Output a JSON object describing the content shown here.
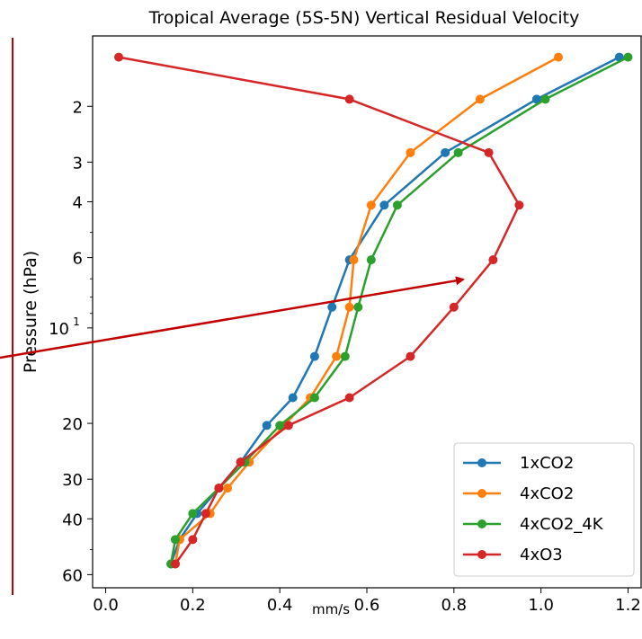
{
  "chart_data": {
    "type": "line",
    "title": "Tropical Average (5S-5N) Vertical Residual Velocity",
    "xlabel": "mm/s",
    "ylabel": "Pressure (hPa)",
    "xlim": [
      -0.03,
      1.23
    ],
    "ylim": [
      1.2,
      66
    ],
    "yscale": "log",
    "y_inverted": true,
    "grid": false,
    "legend_position": "lower-right",
    "xticks": [
      0.0,
      0.2,
      0.4,
      0.6,
      0.8,
      1.0,
      1.2
    ],
    "xtick_labels": [
      "0.0",
      "0.2",
      "0.4",
      "0.6",
      "0.8",
      "1.0",
      "1.2"
    ],
    "yticks": [
      2,
      3,
      4,
      6,
      10,
      20,
      30,
      40,
      60
    ],
    "ytick_labels": [
      "2",
      "3",
      "4",
      "6",
      "10",
      "20",
      "30",
      "40",
      "60"
    ],
    "pressure_levels": [
      1.4,
      1.9,
      2.8,
      4.1,
      6.1,
      8.6,
      12.3,
      16.6,
      20.3,
      26.5,
      32.0,
      38.5,
      46.5,
      55.5
    ],
    "series": [
      {
        "name": "1xCO2",
        "color": "#1f77b4",
        "values": [
          1.18,
          0.99,
          0.78,
          0.64,
          0.56,
          0.52,
          0.48,
          0.43,
          0.37,
          0.31,
          0.26,
          0.21,
          0.17,
          0.15
        ]
      },
      {
        "name": "4xCO2",
        "color": "#ff7f0e",
        "values": [
          1.04,
          0.86,
          0.7,
          0.61,
          0.57,
          0.56,
          0.53,
          0.47,
          0.41,
          0.33,
          0.28,
          0.24,
          0.17,
          0.16
        ]
      },
      {
        "name": "4xCO2_4K",
        "color": "#2ca02c",
        "values": [
          1.2,
          1.01,
          0.81,
          0.67,
          0.61,
          0.58,
          0.55,
          0.48,
          0.4,
          0.32,
          0.26,
          0.2,
          0.16,
          0.15
        ]
      },
      {
        "name": "4xO3",
        "color": "#d62728",
        "values": [
          0.03,
          0.56,
          0.88,
          0.95,
          0.89,
          0.8,
          0.7,
          0.56,
          0.42,
          0.31,
          0.26,
          0.23,
          0.2,
          0.16
        ]
      }
    ]
  }
}
